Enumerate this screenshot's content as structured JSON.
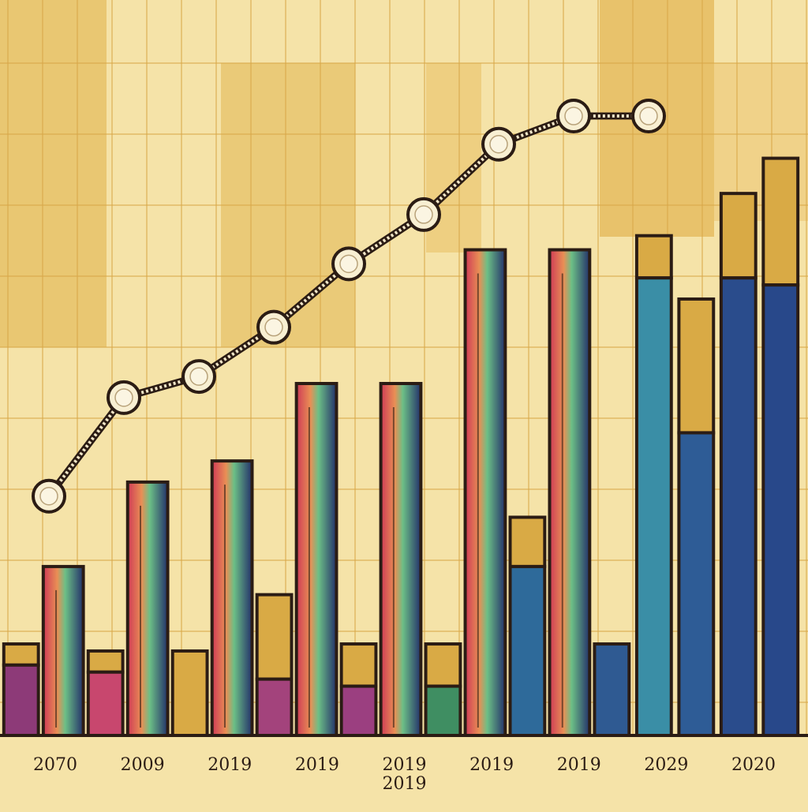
{
  "chart_data": {
    "type": "bar",
    "title": "",
    "xlabel": "",
    "ylabel": "",
    "ylim": [
      0,
      100
    ],
    "grid": true,
    "tick_labels": [
      "2070",
      "2009",
      "2019",
      "2019",
      "2019",
      "2019",
      "2019",
      "2029",
      "2020"
    ],
    "extra_tick_label": "2019",
    "bars": [
      {
        "value": 13,
        "cap": 3,
        "color": "#8d3a78"
      },
      {
        "value": 24
      },
      {
        "value": 12,
        "cap": 3,
        "color": "#c8476e"
      },
      {
        "value": 36
      },
      {
        "value": 12,
        "cap": 12,
        "color": "#8a3a7c"
      },
      {
        "value": 39
      },
      {
        "value": 20,
        "cap": 12,
        "color": "#a3437c"
      },
      {
        "value": 50
      },
      {
        "value": 13,
        "cap": 6,
        "color": "#9b3f80"
      },
      {
        "value": 50
      },
      {
        "value": 13,
        "cap": 6,
        "color": "#3f8e62"
      },
      {
        "value": 69
      },
      {
        "value": 31,
        "cap": 7,
        "color": "#2e6a9a"
      },
      {
        "value": 69
      },
      {
        "value": 13,
        "color": "#2f5a92"
      },
      {
        "value": 71,
        "cap": 6,
        "color": "#3a8ea6"
      },
      {
        "value": 62,
        "cap": 19,
        "color": "#2e5c96"
      },
      {
        "value": 77,
        "cap": 12,
        "color": "#2a4c8c"
      },
      {
        "value": 82,
        "cap": 18,
        "color": "#28488a"
      }
    ],
    "line": {
      "values": [
        34,
        48,
        51,
        58,
        67,
        74,
        84,
        88,
        88
      ]
    },
    "colors": {
      "background": "#f5e3a8",
      "outline": "#2b1c14",
      "cap": "#d9aa45",
      "gradient_start": "#cf3a56",
      "gradient_mid": "#e98f55",
      "gradient_green": "#6cbf86",
      "gradient_end": "#23306a"
    }
  }
}
